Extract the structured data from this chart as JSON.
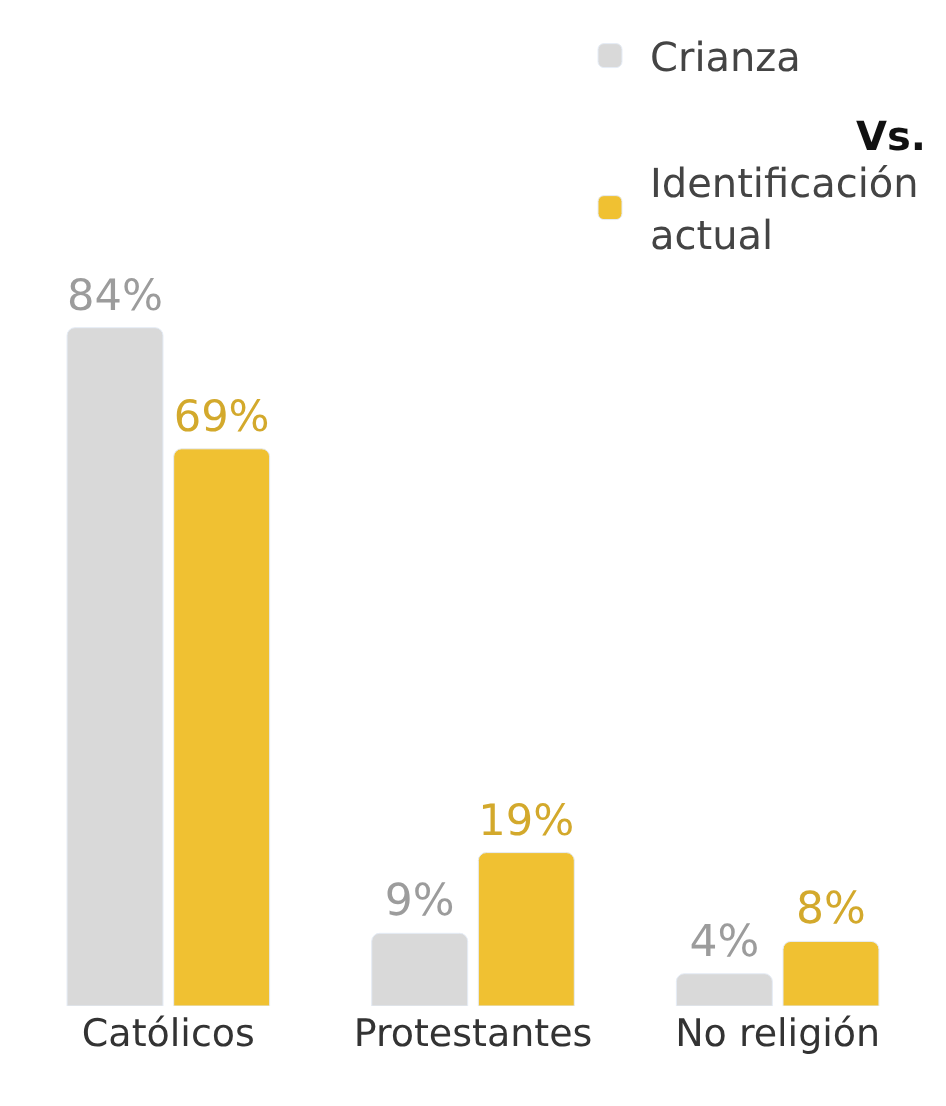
{
  "chart_data": {
    "type": "bar",
    "categories": [
      "Católicos",
      "Protestantes",
      "No religión"
    ],
    "series": [
      {
        "name": "Crianza",
        "color": "#d9d9d9",
        "values": [
          84,
          9,
          4
        ],
        "value_labels": [
          "84%",
          "9%",
          "4%"
        ]
      },
      {
        "name": "Identificación actual",
        "color": "#f0c132",
        "values": [
          69,
          19,
          8
        ],
        "value_labels": [
          "69%",
          "19%",
          "8%"
        ]
      }
    ],
    "annotations": [
      "Vs."
    ],
    "legend": "top right",
    "tick_labels": "x"
  }
}
